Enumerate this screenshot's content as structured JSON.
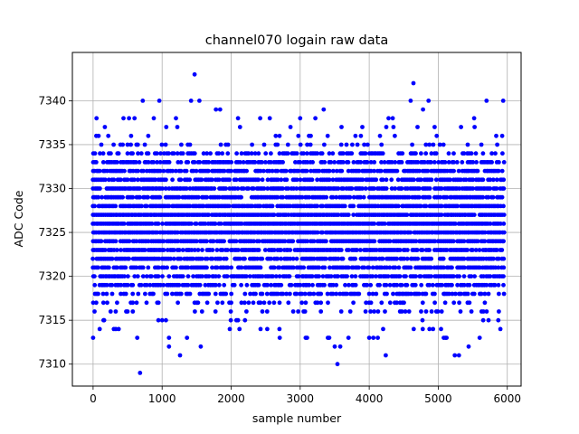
{
  "chart_data": {
    "type": "scatter",
    "title": "channel070 logain raw data",
    "xlabel": "sample number",
    "ylabel": "ADC Code",
    "xlim": [
      -300,
      6200
    ],
    "ylim": [
      7307.5,
      7345.5
    ],
    "xticks": [
      0,
      1000,
      2000,
      3000,
      4000,
      5000,
      6000
    ],
    "yticks": [
      7310,
      7315,
      7320,
      7325,
      7330,
      7335,
      7340
    ],
    "x_tick_labels": [
      "0",
      "1000",
      "2000",
      "3000",
      "4000",
      "5000",
      "6000"
    ],
    "y_tick_labels": [
      "7310",
      "7315",
      "7320",
      "7325",
      "7330",
      "7335",
      "7340"
    ],
    "grid": true,
    "marker": "circle",
    "color": "#0000ff",
    "series": [
      {
        "name": "",
        "x_range": [
          0,
          5950
        ],
        "core_band": [
          7319,
          7333
        ],
        "values_sample": [
          [
            0,
            7313
          ],
          [
            50,
            7338
          ],
          [
            80,
            7336
          ],
          [
            120,
            7335
          ],
          [
            160,
            7315
          ],
          [
            220,
            7336
          ],
          [
            300,
            7314
          ],
          [
            440,
            7338
          ],
          [
            520,
            7338
          ],
          [
            600,
            7338
          ],
          [
            640,
            7313
          ],
          [
            680,
            7309
          ],
          [
            720,
            7340
          ],
          [
            800,
            7336
          ],
          [
            880,
            7338
          ],
          [
            960,
            7340
          ],
          [
            1000,
            7315
          ],
          [
            1060,
            7337
          ],
          [
            1100,
            7312
          ],
          [
            1200,
            7338
          ],
          [
            1260,
            7311
          ],
          [
            1360,
            7313
          ],
          [
            1420,
            7340
          ],
          [
            1470,
            7343
          ],
          [
            1540,
            7340
          ],
          [
            1560,
            7312
          ],
          [
            1780,
            7339
          ],
          [
            1840,
            7339
          ],
          [
            1980,
            7314
          ],
          [
            2100,
            7338
          ],
          [
            2200,
            7315
          ],
          [
            2420,
            7338
          ],
          [
            2560,
            7338
          ],
          [
            2700,
            7314
          ],
          [
            2860,
            7337
          ],
          [
            3000,
            7338
          ],
          [
            3080,
            7313
          ],
          [
            3220,
            7338
          ],
          [
            3340,
            7339
          ],
          [
            3420,
            7313
          ],
          [
            3500,
            7312
          ],
          [
            3540,
            7310
          ],
          [
            3580,
            7312
          ],
          [
            3700,
            7313
          ],
          [
            3800,
            7336
          ],
          [
            3900,
            7337
          ],
          [
            4060,
            7313
          ],
          [
            4240,
            7311
          ],
          [
            4280,
            7338
          ],
          [
            4340,
            7338
          ],
          [
            4600,
            7340
          ],
          [
            4640,
            7342
          ],
          [
            4700,
            7337
          ],
          [
            4780,
            7339
          ],
          [
            4860,
            7340
          ],
          [
            5040,
            7314
          ],
          [
            5120,
            7313
          ],
          [
            5240,
            7311
          ],
          [
            5300,
            7311
          ],
          [
            5440,
            7312
          ],
          [
            5520,
            7338
          ],
          [
            5600,
            7313
          ],
          [
            5700,
            7340
          ],
          [
            5840,
            7336
          ],
          [
            5900,
            7314
          ],
          [
            5940,
            7340
          ]
        ]
      }
    ]
  }
}
